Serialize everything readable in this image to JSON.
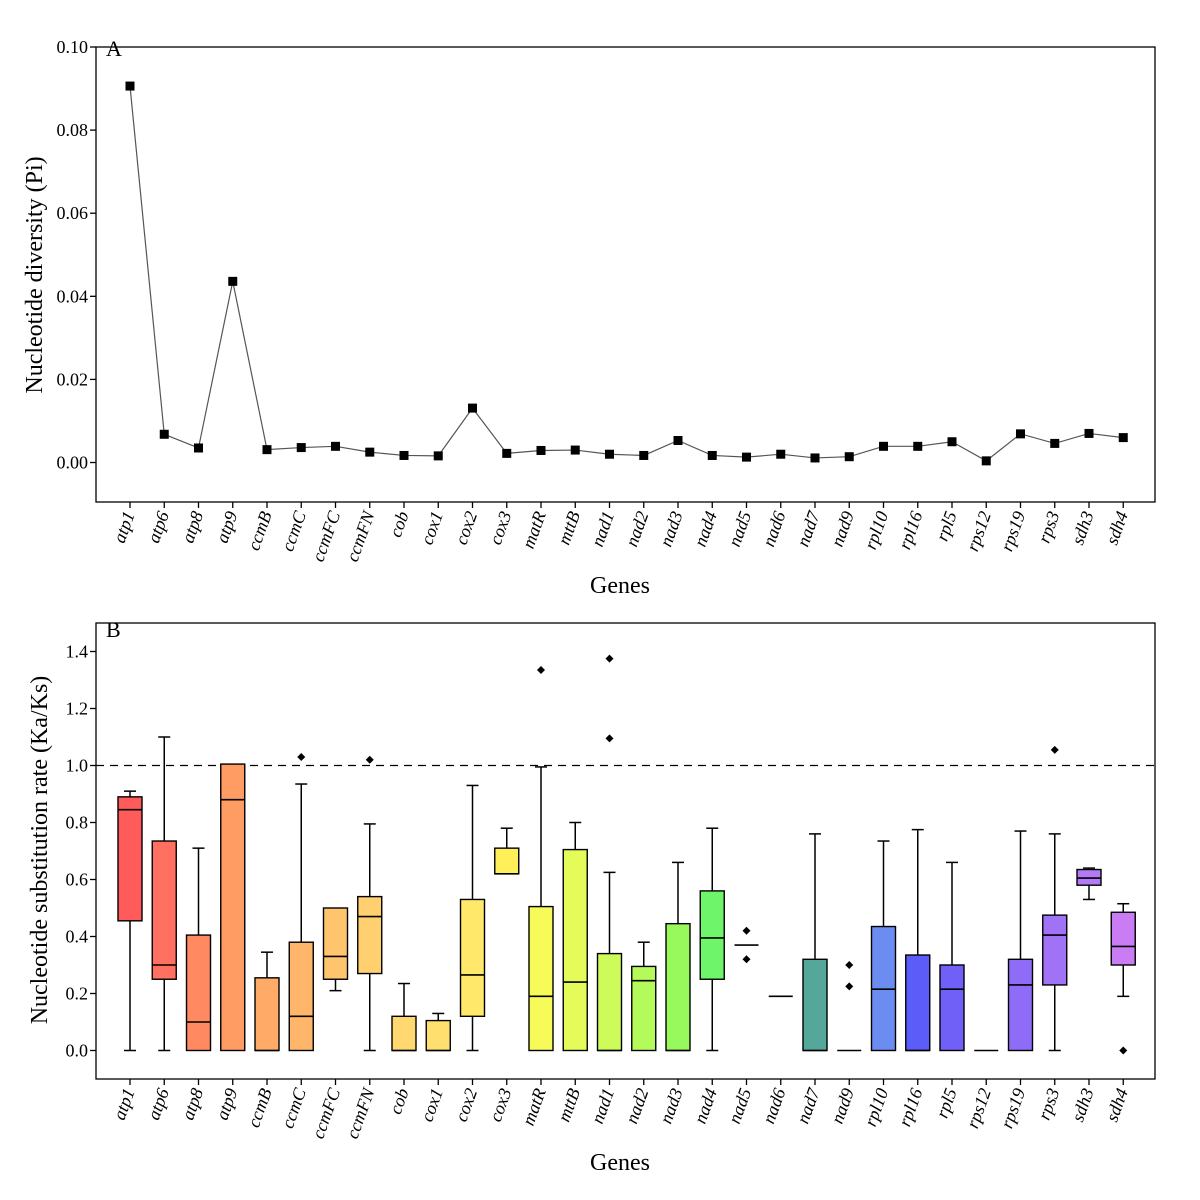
{
  "chart_data": [
    {
      "type": "line",
      "panel_label": "A",
      "xlabel": "Genes",
      "ylabel": "Nucleotide diversity (Pi)",
      "ylim": [
        -0.0095,
        0.1
      ],
      "yticks": [
        "0.00",
        "0.02",
        "0.04",
        "0.06",
        "0.08",
        "0.10"
      ],
      "ytick_values": [
        0,
        0.02,
        0.04,
        0.06,
        0.08,
        0.1
      ],
      "grid": false,
      "categories": [
        "atp1",
        "atp6",
        "atp8",
        "atp9",
        "ccmB",
        "ccmC",
        "ccmFC",
        "ccmFN",
        "cob",
        "cox1",
        "cox2",
        "cox3",
        "matR",
        "mttB",
        "nad1",
        "nad2",
        "nad3",
        "nad4",
        "nad5",
        "nad6",
        "nad7",
        "nad9",
        "rpl10",
        "rpl16",
        "rpl5",
        "rps12",
        "rps19",
        "rps3",
        "sdh3",
        "sdh4"
      ],
      "values": [
        0.0906,
        0.0068,
        0.0035,
        0.0436,
        0.0031,
        0.0036,
        0.0039,
        0.0025,
        0.0017,
        0.0016,
        0.0131,
        0.0022,
        0.0029,
        0.003,
        0.002,
        0.0017,
        0.0053,
        0.0017,
        0.0013,
        0.002,
        0.0011,
        0.0014,
        0.0039,
        0.0039,
        0.005,
        0.0004,
        0.0069,
        0.0046,
        0.007,
        0.006
      ],
      "marker": "square",
      "line_color": "#555555",
      "marker_color": "#000000"
    },
    {
      "type": "box",
      "panel_label": "B",
      "xlabel": "Genes",
      "ylabel": "Nucleotide substitution rate (Ka/Ks)",
      "ylim": [
        -0.1,
        1.5
      ],
      "yticks": [
        "0.0",
        "0.2",
        "0.4",
        "0.6",
        "0.8",
        "1.0",
        "1.2",
        "1.4"
      ],
      "ytick_values": [
        0,
        0.2,
        0.4,
        0.6,
        0.8,
        1.0,
        1.2,
        1.4
      ],
      "reference_line": 1.0,
      "grid": false,
      "boxes": [
        {
          "gene": "atp1",
          "min": 0.0,
          "q1": 0.455,
          "median": 0.845,
          "q3": 0.89,
          "max": 0.91,
          "outliers": [],
          "color": "#ff5b5b"
        },
        {
          "gene": "atp6",
          "min": 0.0,
          "q1": 0.25,
          "median": 0.3,
          "q3": 0.735,
          "max": 1.1,
          "outliers": [],
          "color": "#ff7060"
        },
        {
          "gene": "atp8",
          "min": 0.0,
          "q1": 0.0,
          "median": 0.1,
          "q3": 0.405,
          "max": 0.71,
          "outliers": [],
          "color": "#ff8a62"
        },
        {
          "gene": "atp9",
          "min": 0.0,
          "q1": 0.0,
          "median": 0.88,
          "q3": 1.005,
          "max": 1.005,
          "outliers": [],
          "color": "#ff9c63"
        },
        {
          "gene": "ccmB",
          "min": 0.0,
          "q1": 0.0,
          "median": 0.0,
          "q3": 0.255,
          "max": 0.345,
          "outliers": [],
          "color": "#ffaa66"
        },
        {
          "gene": "ccmC",
          "min": 0.0,
          "q1": 0.0,
          "median": 0.12,
          "q3": 0.38,
          "max": 0.935,
          "outliers": [
            1.03
          ],
          "color": "#ffb66a"
        },
        {
          "gene": "ccmFC",
          "min": 0.21,
          "q1": 0.25,
          "median": 0.33,
          "q3": 0.5,
          "max": 0.5,
          "outliers": [],
          "color": "#ffc46e"
        },
        {
          "gene": "ccmFN",
          "min": 0.0,
          "q1": 0.27,
          "median": 0.47,
          "q3": 0.54,
          "max": 0.795,
          "outliers": [
            1.02
          ],
          "color": "#ffcf70"
        },
        {
          "gene": "cob",
          "min": 0.0,
          "q1": 0.0,
          "median": 0.0,
          "q3": 0.12,
          "max": 0.235,
          "outliers": [],
          "color": "#ffd970"
        },
        {
          "gene": "cox1",
          "min": 0.0,
          "q1": 0.0,
          "median": 0.0,
          "q3": 0.105,
          "max": 0.13,
          "outliers": [],
          "color": "#ffe06e"
        },
        {
          "gene": "cox2",
          "min": 0.0,
          "q1": 0.12,
          "median": 0.265,
          "q3": 0.53,
          "max": 0.93,
          "outliers": [],
          "color": "#ffe86a"
        },
        {
          "gene": "cox3",
          "min": 0.62,
          "q1": 0.62,
          "median": 0.62,
          "q3": 0.71,
          "max": 0.78,
          "outliers": [],
          "color": "#fff05a"
        },
        {
          "gene": "matR",
          "min": 0.0,
          "q1": 0.0,
          "median": 0.19,
          "q3": 0.505,
          "max": 0.995,
          "outliers": [
            1.335
          ],
          "color": "#f6fb5a"
        },
        {
          "gene": "mttB",
          "min": 0.0,
          "q1": 0.0,
          "median": 0.24,
          "q3": 0.705,
          "max": 0.8,
          "outliers": [],
          "color": "#e4fb5a"
        },
        {
          "gene": "nad1",
          "min": 0.0,
          "q1": 0.0,
          "median": 0.0,
          "q3": 0.34,
          "max": 0.625,
          "outliers": [
            1.095,
            1.375
          ],
          "color": "#cdfb5a"
        },
        {
          "gene": "nad2",
          "min": 0.0,
          "q1": 0.0,
          "median": 0.245,
          "q3": 0.295,
          "max": 0.38,
          "outliers": [],
          "color": "#b4fa5a"
        },
        {
          "gene": "nad3",
          "min": 0.0,
          "q1": 0.0,
          "median": 0.0,
          "q3": 0.445,
          "max": 0.66,
          "outliers": [],
          "color": "#98f95c"
        },
        {
          "gene": "nad4",
          "min": 0.0,
          "q1": 0.25,
          "median": 0.395,
          "q3": 0.56,
          "max": 0.78,
          "outliers": [],
          "color": "#6ef569"
        },
        {
          "gene": "nad5",
          "min": 0.37,
          "q1": 0.37,
          "median": 0.37,
          "q3": 0.37,
          "max": 0.37,
          "outliers": [
            0.32,
            0.42
          ],
          "color": "#66e27a"
        },
        {
          "gene": "nad6",
          "min": 0.19,
          "q1": 0.19,
          "median": 0.19,
          "q3": 0.19,
          "max": 0.19,
          "outliers": [],
          "color": "#5fc490"
        },
        {
          "gene": "nad7",
          "min": 0.0,
          "q1": 0.0,
          "median": 0.0,
          "q3": 0.32,
          "max": 0.76,
          "outliers": [],
          "color": "#55a79a"
        },
        {
          "gene": "nad9",
          "min": 0.0,
          "q1": 0.0,
          "median": 0.0,
          "q3": 0.0,
          "max": 0.0,
          "outliers": [
            0.225,
            0.3
          ],
          "color": "#5a93cc"
        },
        {
          "gene": "rpl10",
          "min": 0.0,
          "q1": 0.0,
          "median": 0.215,
          "q3": 0.435,
          "max": 0.735,
          "outliers": [],
          "color": "#6b8cf0"
        },
        {
          "gene": "rpl16",
          "min": 0.0,
          "q1": 0.0,
          "median": 0.0,
          "q3": 0.335,
          "max": 0.775,
          "outliers": [],
          "color": "#5c5cf8"
        },
        {
          "gene": "rpl5",
          "min": 0.0,
          "q1": 0.0,
          "median": 0.215,
          "q3": 0.3,
          "max": 0.66,
          "outliers": [],
          "color": "#7060f8"
        },
        {
          "gene": "rps12",
          "min": 0.0,
          "q1": 0.0,
          "median": 0.0,
          "q3": 0.0,
          "max": 0.0,
          "outliers": [],
          "color": "#7f63f7"
        },
        {
          "gene": "rps19",
          "min": 0.0,
          "q1": 0.0,
          "median": 0.23,
          "q3": 0.32,
          "max": 0.77,
          "outliers": [],
          "color": "#8f6cf8"
        },
        {
          "gene": "rps3",
          "min": 0.0,
          "q1": 0.23,
          "median": 0.405,
          "q3": 0.475,
          "max": 0.76,
          "outliers": [
            1.055
          ],
          "color": "#9f72f6"
        },
        {
          "gene": "sdh3",
          "min": 0.53,
          "q1": 0.58,
          "median": 0.605,
          "q3": 0.635,
          "max": 0.64,
          "outliers": [],
          "color": "#b47af6"
        },
        {
          "gene": "sdh4",
          "min": 0.19,
          "q1": 0.3,
          "median": 0.365,
          "q3": 0.485,
          "max": 0.515,
          "outliers": [
            0.0
          ],
          "color": "#c97cf3"
        }
      ]
    }
  ]
}
